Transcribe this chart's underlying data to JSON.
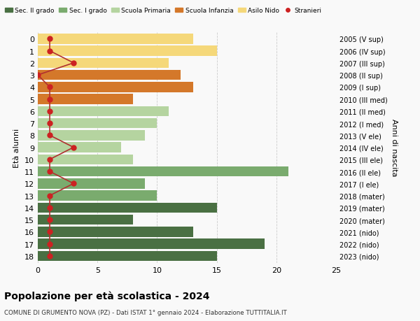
{
  "ages": [
    18,
    17,
    16,
    15,
    14,
    13,
    12,
    11,
    10,
    9,
    8,
    7,
    6,
    5,
    4,
    3,
    2,
    1,
    0
  ],
  "bar_values": [
    15,
    19,
    13,
    8,
    15,
    10,
    9,
    21,
    8,
    7,
    9,
    10,
    11,
    8,
    13,
    12,
    11,
    15,
    13
  ],
  "bar_colors": [
    "#4a7043",
    "#4a7043",
    "#4a7043",
    "#4a7043",
    "#4a7043",
    "#7aab6e",
    "#7aab6e",
    "#7aab6e",
    "#b5d4a0",
    "#b5d4a0",
    "#b5d4a0",
    "#b5d4a0",
    "#b5d4a0",
    "#d4782a",
    "#d4782a",
    "#d4782a",
    "#f5d87a",
    "#f5d87a",
    "#f5d87a"
  ],
  "stranieri_values": [
    1,
    1,
    1,
    1,
    1,
    1,
    3,
    1,
    1,
    3,
    1,
    1,
    1,
    1,
    1,
    0,
    3,
    1,
    1
  ],
  "right_labels": [
    "2005 (V sup)",
    "2006 (IV sup)",
    "2007 (III sup)",
    "2008 (II sup)",
    "2009 (I sup)",
    "2010 (III med)",
    "2011 (II med)",
    "2012 (I med)",
    "2013 (V ele)",
    "2014 (IV ele)",
    "2015 (III ele)",
    "2016 (II ele)",
    "2017 (I ele)",
    "2018 (mater)",
    "2019 (mater)",
    "2020 (mater)",
    "2021 (nido)",
    "2022 (nido)",
    "2023 (nido)"
  ],
  "legend_labels": [
    "Sec. II grado",
    "Sec. I grado",
    "Scuola Primaria",
    "Scuola Infanzia",
    "Asilo Nido",
    "Stranieri"
  ],
  "legend_colors": [
    "#4a7043",
    "#7aab6e",
    "#b5d4a0",
    "#d4782a",
    "#f5d87a",
    "#cc2222"
  ],
  "ylabel": "Età alunni",
  "right_ylabel": "Anni di nascita",
  "title": "Popolazione per età scolastica - 2024",
  "subtitle": "COMUNE DI GRUMENTO NOVA (PZ) - Dati ISTAT 1° gennaio 2024 - Elaborazione TUTTITALIA.IT",
  "xlim": [
    0,
    25
  ],
  "background_color": "#f9f9f9",
  "grid_color": "#cccccc",
  "stranieri_color": "#cc2222",
  "stranieri_line_color": "#b03030"
}
